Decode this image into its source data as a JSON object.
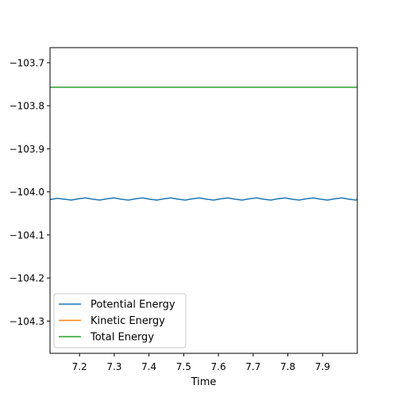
{
  "chart_data": {
    "type": "line",
    "title": "",
    "xlabel": "Time",
    "ylabel": "",
    "xlim": [
      7.115,
      8.0
    ],
    "ylim": [
      -104.375,
      -103.665
    ],
    "xticks": [
      7.2,
      7.3,
      7.4,
      7.5,
      7.6,
      7.7,
      7.8,
      7.9
    ],
    "yticks": [
      -103.7,
      -103.8,
      -103.9,
      -104.0,
      -104.1,
      -104.2,
      -104.3
    ],
    "xtick_labels": [
      "7.2",
      "7.3",
      "7.4",
      "7.5",
      "7.6",
      "7.7",
      "7.8",
      "7.9"
    ],
    "ytick_labels": [
      "−103.7",
      "−103.8",
      "−103.9",
      "−104.0",
      "−104.1",
      "−104.2",
      "−104.3"
    ],
    "grid": false,
    "legend_position": "bottom-left",
    "series": [
      {
        "name": "Potential Energy",
        "color": "#1f77b4",
        "x": [
          7.115,
          7.1355,
          7.156,
          7.1765,
          7.197,
          7.2175,
          7.238,
          7.2585,
          7.279,
          7.2995,
          7.32,
          7.3405,
          7.361,
          7.3815,
          7.402,
          7.4225,
          7.443,
          7.4635,
          7.484,
          7.5045,
          7.525,
          7.5455,
          7.566,
          7.5865,
          7.607,
          7.6275,
          7.648,
          7.6685,
          7.689,
          7.7095,
          7.73,
          7.7505,
          7.771,
          7.7915,
          7.812,
          7.8325,
          7.853,
          7.8735,
          7.894,
          7.9145,
          7.935,
          7.9555,
          7.976,
          7.9965,
          8.0
        ],
        "y": [
          -104.018,
          -104.015,
          -104.017,
          -104.019,
          -104.016,
          -104.014,
          -104.017,
          -104.019,
          -104.016,
          -104.014,
          -104.017,
          -104.019,
          -104.016,
          -104.014,
          -104.017,
          -104.019,
          -104.016,
          -104.014,
          -104.017,
          -104.019,
          -104.016,
          -104.014,
          -104.017,
          -104.019,
          -104.016,
          -104.014,
          -104.017,
          -104.019,
          -104.016,
          -104.014,
          -104.017,
          -104.019,
          -104.016,
          -104.014,
          -104.017,
          -104.019,
          -104.016,
          -104.014,
          -104.017,
          -104.019,
          -104.016,
          -104.014,
          -104.017,
          -104.019,
          -104.017
        ]
      },
      {
        "name": "Kinetic Energy",
        "color": "#ff7f0e",
        "x": [],
        "y": []
      },
      {
        "name": "Total Energy",
        "color": "#2ca02c",
        "x": [
          7.115,
          8.0
        ],
        "y": [
          -103.757,
          -103.757
        ]
      }
    ]
  }
}
